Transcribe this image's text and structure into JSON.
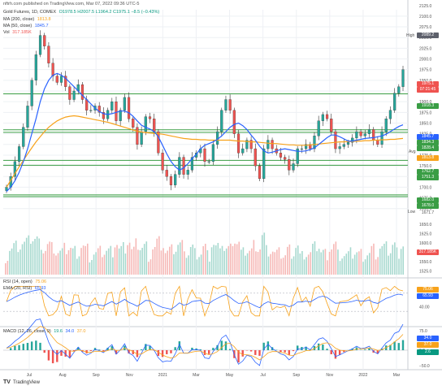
{
  "header": {
    "published": "nftrh.com published on TradingView.com, Mar 07, 2022 09:36 UTC-5"
  },
  "legend": {
    "instrument": "Gold Futures, 1D, COMEX",
    "ohlc": "O1978.5 H2007.5 L1964.2 C1975.1 −8.5 (−0.43%)",
    "ma200": "MA (200, close)",
    "ma200_value": "1813.8",
    "ma50": "MA (50, close)",
    "ma50_value": "1845.7",
    "vol": "Vol",
    "vol_value": "317.185K",
    "rsi": "RSI (14, open)",
    "rsi_value": "75.06",
    "ema": "EMA (20, RSI)",
    "ema_value": "65.93",
    "macd": "MACD (12, 26, close, 9)",
    "macd_v1": "19.6",
    "macd_v2": "34.0",
    "macd_v3": "37.0"
  },
  "price_labels": {
    "high": "High",
    "avg": "Avg",
    "low": "Low"
  },
  "tags": {
    "high": "2089.2",
    "last": "1975.1",
    "last_time": "07:21:45",
    "r1": "1918.3",
    "ma50": "1845.7",
    "s1": "1834.3",
    "s2": "1828.4",
    "ma200": "1813.8",
    "s3": "1762.7",
    "s4": "1751.3",
    "s5": "1682.0",
    "s6": "1678.0",
    "low": "1671.7",
    "vol": "317.185K",
    "rsi": "75.06",
    "ema": "65.93",
    "macd1": "34.0",
    "macd2": "37.0",
    "macd3": "2.6"
  },
  "footer": {
    "brand": "TradingView"
  },
  "chart_data": {
    "type": "line",
    "x_tick_labels": [
      "Jul",
      "Aug",
      "Sep",
      "Nov",
      "2021",
      "Mar",
      "May",
      "Jul",
      "Sep",
      "Nov",
      "2022",
      "Mar"
    ],
    "price_axis_ticks": [
      2100,
      2075,
      2050,
      2025,
      2000,
      1975,
      1950,
      1925,
      1900,
      1875,
      1850,
      1825,
      1800,
      1775,
      1750,
      1725,
      1700,
      1675,
      1650
    ],
    "price_axis_top_label": "2125.0",
    "price_range": [
      1640,
      2115
    ],
    "horizontal_levels": [
      1918.3,
      1834.3,
      1828.4,
      1762.7,
      1751.3,
      1682.0,
      1678.0
    ],
    "price_close": [
      1700,
      1725,
      1760,
      1795,
      1840,
      1890,
      1950,
      2010,
      2055,
      2030,
      1990,
      1960,
      1945,
      1960,
      1935,
      1905,
      1925,
      1940,
      1905,
      1880,
      1880,
      1890,
      1875,
      1860,
      1880,
      1900,
      1855,
      1880,
      1910,
      1860,
      1840,
      1800,
      1830,
      1865,
      1860,
      1830,
      1780,
      1740,
      1725,
      1705,
      1730,
      1770,
      1730,
      1740,
      1770,
      1780,
      1790,
      1760,
      1760,
      1800,
      1830,
      1880,
      1905,
      1880,
      1825,
      1780,
      1790,
      1810,
      1790,
      1750,
      1720,
      1790,
      1810,
      1790,
      1780,
      1770,
      1765,
      1740,
      1755,
      1790,
      1790,
      1800,
      1790,
      1820,
      1855,
      1870,
      1860,
      1830,
      1790,
      1795,
      1800,
      1805,
      1815,
      1830,
      1820,
      1825,
      1835,
      1810,
      1800,
      1830,
      1860,
      1880,
      1920,
      1935,
      1975
    ],
    "ma200": [
      1700,
      1716,
      1732,
      1748,
      1763,
      1778,
      1792,
      1806,
      1818,
      1830,
      1840,
      1848,
      1855,
      1860,
      1864,
      1866,
      1867,
      1866,
      1864,
      1862,
      1860,
      1858,
      1856,
      1854,
      1852,
      1849,
      1846,
      1843,
      1840,
      1837,
      1834,
      1831,
      1829,
      1828,
      1827,
      1826,
      1825,
      1824,
      1822,
      1820,
      1818,
      1816,
      1814,
      1813,
      1812,
      1812,
      1811,
      1811,
      1810,
      1810,
      1810,
      1810,
      1810,
      1810,
      1809,
      1808,
      1808,
      1807,
      1806,
      1806,
      1805,
      1804,
      1803,
      1802,
      1802,
      1801,
      1800,
      1799,
      1799,
      1798,
      1798,
      1798,
      1799,
      1800,
      1801,
      1802,
      1803,
      1804,
      1805,
      1806,
      1806,
      1807,
      1807,
      1808,
      1808,
      1809,
      1809,
      1810,
      1810,
      1811,
      1811,
      1812,
      1812,
      1813,
      1814
    ],
    "ma50": [
      1690,
      1700,
      1715,
      1735,
      1760,
      1790,
      1825,
      1860,
      1900,
      1930,
      1950,
      1962,
      1966,
      1962,
      1955,
      1945,
      1935,
      1925,
      1915,
      1905,
      1895,
      1885,
      1877,
      1872,
      1870,
      1872,
      1875,
      1878,
      1878,
      1874,
      1866,
      1855,
      1845,
      1840,
      1836,
      1830,
      1818,
      1798,
      1778,
      1760,
      1748,
      1740,
      1745,
      1755,
      1767,
      1777,
      1790,
      1798,
      1802,
      1806,
      1812,
      1820,
      1830,
      1840,
      1847,
      1850,
      1844,
      1835,
      1822,
      1810,
      1796,
      1785,
      1780,
      1782,
      1785,
      1788,
      1790,
      1788,
      1786,
      1784,
      1784,
      1785,
      1788,
      1792,
      1800,
      1808,
      1816,
      1822,
      1822,
      1818,
      1813,
      1808,
      1808,
      1810,
      1812,
      1814,
      1815,
      1816,
      1818,
      1820,
      1824,
      1830,
      1836,
      1842,
      1846
    ],
    "volume_axis_ticks": [
      1650,
      1625,
      1600,
      1575,
      1550,
      1525
    ],
    "rsi_axis_label": "40.00",
    "rsi_last": 75.06,
    "rsi_ema_last": 65.93,
    "macd_axis_labels": [
      "75.0",
      "0.0",
      "−50.0"
    ]
  }
}
